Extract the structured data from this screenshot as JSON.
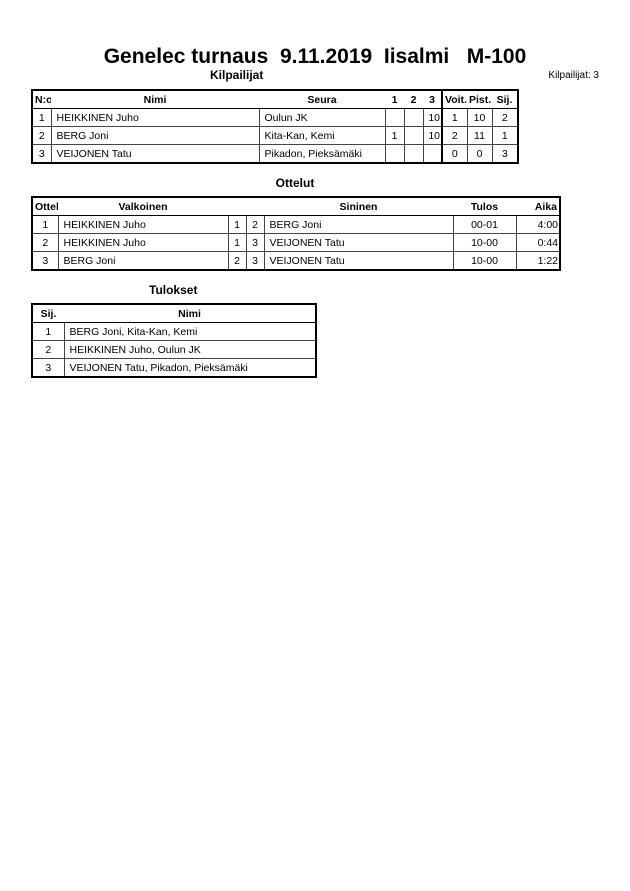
{
  "title": "Genelec turnaus  9.11.2019  Iisalmi   M-100",
  "competitors": {
    "heading": "Kilpailijat",
    "count_label": "Kilpailijat: 3",
    "headers": [
      "N:o",
      "Nimi",
      "Seura",
      "1",
      "2",
      "3",
      "Voit.",
      "Pist.",
      "Sij."
    ],
    "rows": [
      [
        "1",
        "HEIKKINEN Juho",
        "Oulun JK",
        "",
        "",
        "10",
        "1",
        "10",
        "2"
      ],
      [
        "2",
        "BERG Joni",
        "Kita-Kan, Kemi",
        "1",
        "",
        "10",
        "2",
        "11",
        "1"
      ],
      [
        "3",
        "VEIJONEN Tatu",
        "Pikadon, Pieksämäki",
        "",
        "",
        "",
        "0",
        "0",
        "3"
      ]
    ]
  },
  "matches": {
    "heading": "Ottelut",
    "headers": [
      "Ottelu",
      "Valkoinen",
      "",
      "",
      "Sininen",
      "Tulos",
      "Aika"
    ],
    "rows": [
      [
        "1",
        "HEIKKINEN Juho",
        "1",
        "2",
        "BERG Joni",
        "00-01",
        "4:00"
      ],
      [
        "2",
        "HEIKKINEN Juho",
        "1",
        "3",
        "VEIJONEN Tatu",
        "10-00",
        "0:44"
      ],
      [
        "3",
        "BERG Joni",
        "2",
        "3",
        "VEIJONEN Tatu",
        "10-00",
        "1:22"
      ]
    ]
  },
  "results": {
    "heading": "Tulokset",
    "headers": [
      "Sij.",
      "Nimi"
    ],
    "rows": [
      [
        "1",
        "BERG Joni, Kita-Kan, Kemi"
      ],
      [
        "2",
        "HEIKKINEN Juho, Oulun JK"
      ],
      [
        "3",
        "VEIJONEN Tatu, Pikadon, Pieksämäki"
      ]
    ]
  }
}
